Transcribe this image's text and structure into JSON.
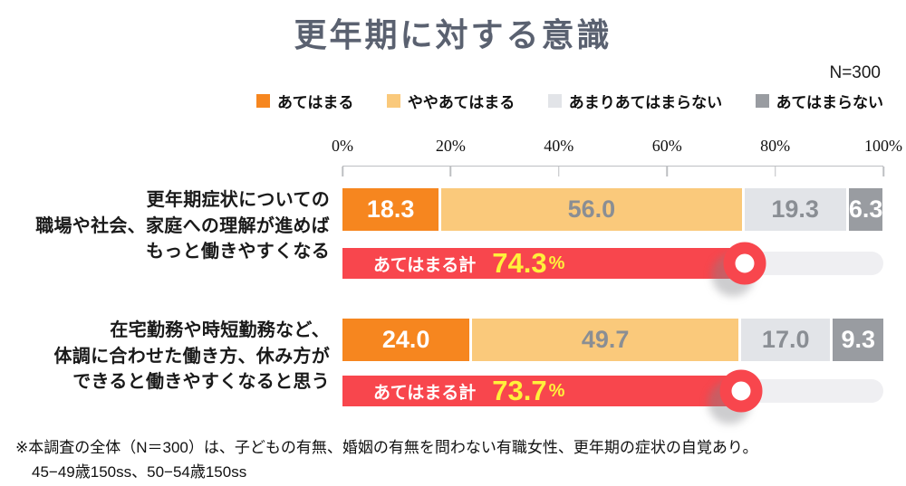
{
  "title": "更年期に対する意識",
  "sample_size": "N=300",
  "legend": {
    "items": [
      {
        "label": "あてはまる",
        "color": "#F6861F"
      },
      {
        "label": "ややあてはまる",
        "color": "#FAC97B"
      },
      {
        "label": "あまりあてはまらない",
        "color": "#E2E4E8"
      },
      {
        "label": "あてはまらない",
        "color": "#999CA1"
      }
    ]
  },
  "chart_data": {
    "type": "bar",
    "orientation": "horizontal-stacked",
    "unit": "%",
    "xlim": [
      0,
      100
    ],
    "axis_ticks": [
      "0%",
      "20%",
      "40%",
      "60%",
      "80%",
      "100%"
    ],
    "legend_position": "top",
    "categories": [
      "更年期症状についての職場や社会、家庭への理解が進めばもっと働きやすくなる",
      "在宅勤務や時短勤務など、体調に合わせた働き方、休み方ができると働きやすくなると思う"
    ],
    "series": [
      {
        "name": "あてはまる",
        "color": "#F6861F",
        "values": [
          "18.3",
          "24.0"
        ]
      },
      {
        "name": "ややあてはまる",
        "color": "#FAC97B",
        "values": [
          "56.0",
          "49.7"
        ]
      },
      {
        "name": "あまりあてはまらない",
        "color": "#E2E4E8",
        "values": [
          "19.3",
          "17.0"
        ]
      },
      {
        "name": "あてはまらない",
        "color": "#999CA1",
        "values": [
          "6.3",
          "9.3"
        ]
      }
    ],
    "totals": [
      {
        "label": "あてはまる計",
        "value": "74.3",
        "unit": "%"
      },
      {
        "label": "あてはまる計",
        "value": "73.7",
        "unit": "%"
      }
    ]
  },
  "rows": [
    {
      "label_lines": [
        "更年期症状についての",
        "職場や社会、家庭への理解が進めば",
        "もっと働きやすくなる"
      ],
      "total_label": "あてはまる計",
      "total_value": "74.3",
      "total_unit": "%"
    },
    {
      "label_lines": [
        "在宅勤務や時短勤務など、",
        "体調に合わせた働き方、休み方が",
        "できると働きやすくなると思う"
      ],
      "total_label": "あてはまる計",
      "total_value": "73.7",
      "total_unit": "%"
    }
  ],
  "footnote": {
    "line1": "※本調査の全体（N＝300）は、子どもの有無、婚姻の有無を問わない有職女性、更年期の症状の自覚あり。",
    "line2": "45−49歳150ss、50−54歳150ss"
  },
  "colors": {
    "title": "#5A6170",
    "gauge_red": "#F8464D",
    "gauge_value_yellow": "#FFF13B",
    "gauge_track": "#EFEFF2",
    "segment_number_gray": "#8A8E94",
    "axis": "#BDBFC2"
  }
}
